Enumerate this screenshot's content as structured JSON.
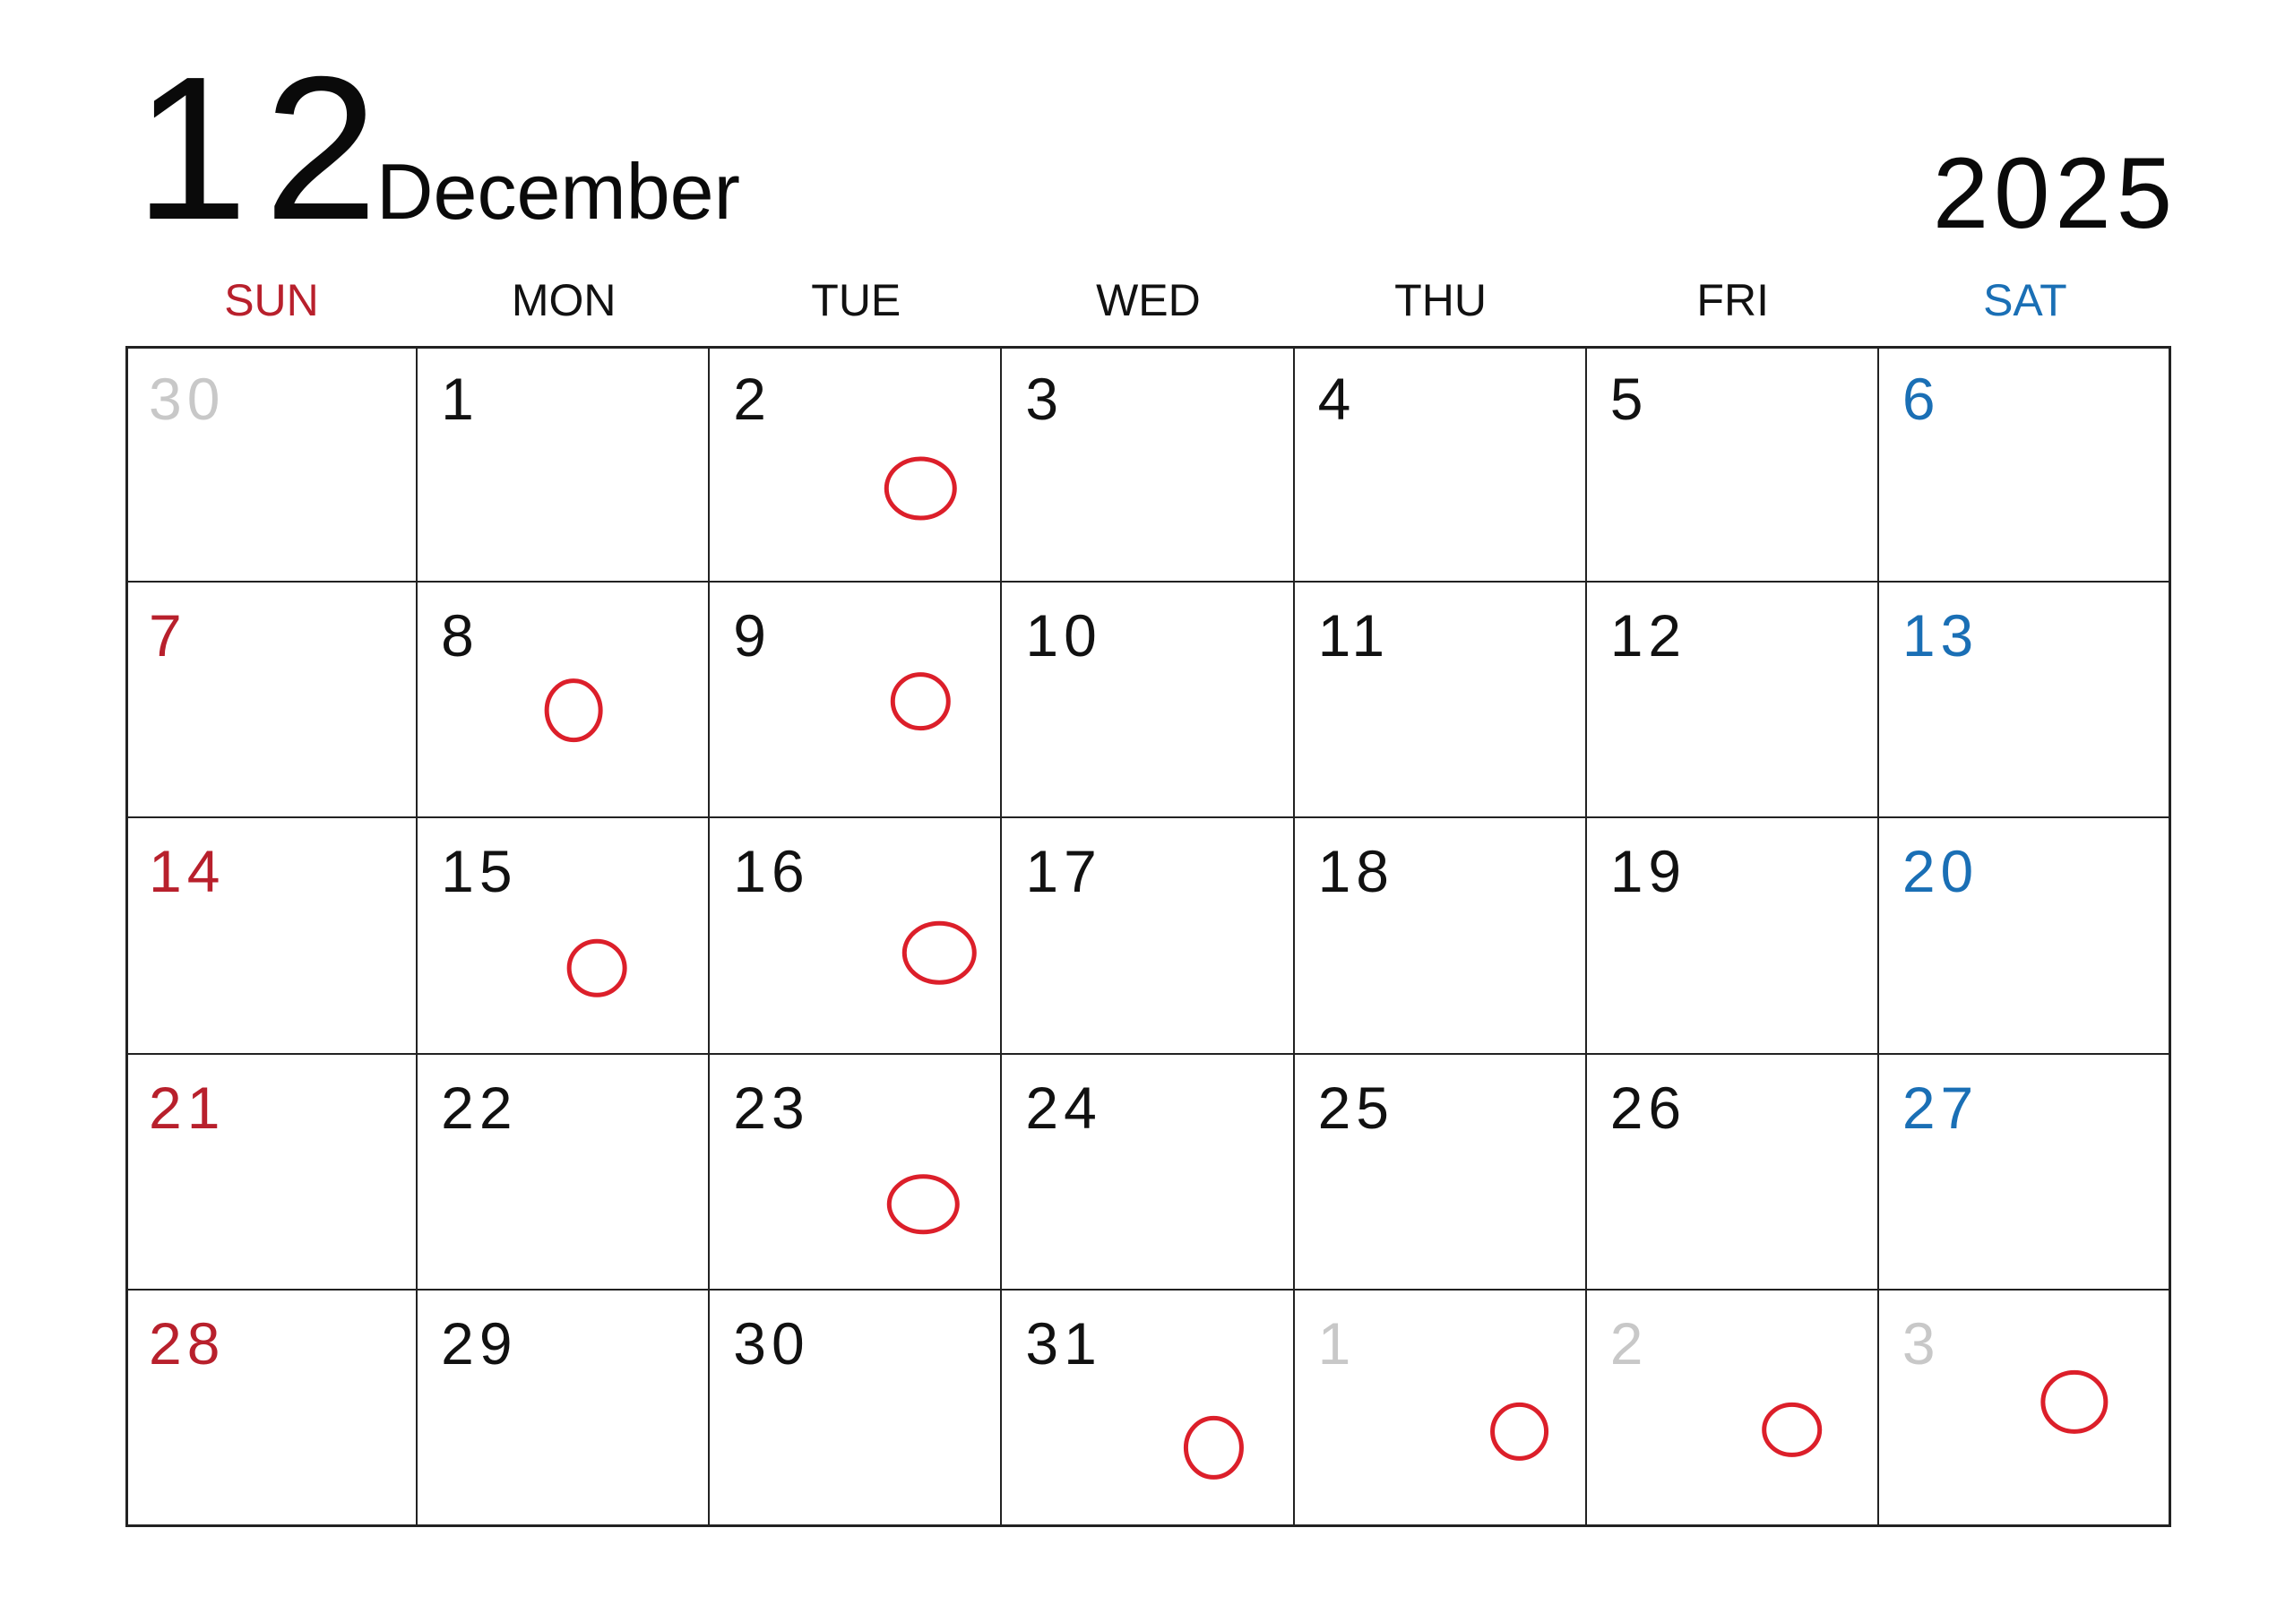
{
  "header": {
    "month_number": "12",
    "month_name": "December",
    "year": "2025"
  },
  "colors": {
    "sunday": "#b8202c",
    "saturday": "#1a6fb5",
    "weekday": "#111111",
    "other_month": "#c8c8c8",
    "mark": "#dc1f2a",
    "grid": "#222222"
  },
  "weekdays": [
    {
      "label": "SUN",
      "color": "#b8202c"
    },
    {
      "label": "MON",
      "color": "#111111"
    },
    {
      "label": "TUE",
      "color": "#111111"
    },
    {
      "label": "WED",
      "color": "#111111"
    },
    {
      "label": "THU",
      "color": "#111111"
    },
    {
      "label": "FRI",
      "color": "#111111"
    },
    {
      "label": "SAT",
      "color": "#1a6fb5"
    }
  ],
  "weeks": [
    [
      {
        "day": "30",
        "other": true
      },
      {
        "day": "1"
      },
      {
        "day": "2",
        "marked": true
      },
      {
        "day": "3"
      },
      {
        "day": "4"
      },
      {
        "day": "5"
      },
      {
        "day": "6"
      }
    ],
    [
      {
        "day": "7"
      },
      {
        "day": "8",
        "marked": true
      },
      {
        "day": "9",
        "marked": true
      },
      {
        "day": "10"
      },
      {
        "day": "11"
      },
      {
        "day": "12"
      },
      {
        "day": "13"
      }
    ],
    [
      {
        "day": "14"
      },
      {
        "day": "15",
        "marked": true
      },
      {
        "day": "16",
        "marked": true
      },
      {
        "day": "17"
      },
      {
        "day": "18"
      },
      {
        "day": "19"
      },
      {
        "day": "20"
      }
    ],
    [
      {
        "day": "21"
      },
      {
        "day": "22"
      },
      {
        "day": "23",
        "marked": true
      },
      {
        "day": "24"
      },
      {
        "day": "25"
      },
      {
        "day": "26"
      },
      {
        "day": "27"
      }
    ],
    [
      {
        "day": "28"
      },
      {
        "day": "29"
      },
      {
        "day": "30"
      },
      {
        "day": "31",
        "marked": true
      },
      {
        "day": "1",
        "other": true,
        "marked": true
      },
      {
        "day": "2",
        "other": true,
        "marked": true
      },
      {
        "day": "3",
        "other": true,
        "marked": true
      }
    ]
  ]
}
